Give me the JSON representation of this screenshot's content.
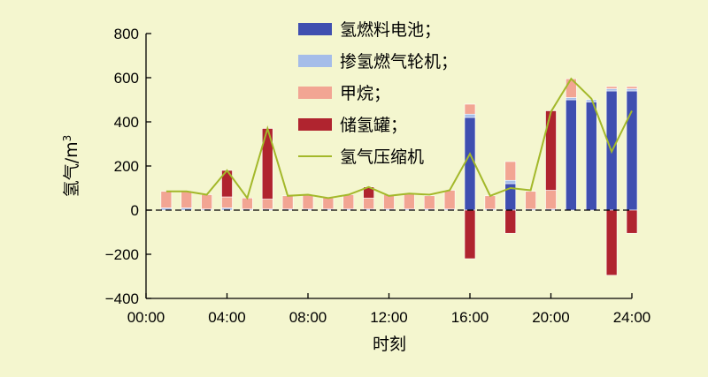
{
  "chart_data": {
    "type": "bar",
    "title": "",
    "xlabel": "时刻",
    "ylabel": "氢气/m",
    "ylabel_sup": "3",
    "ylim": [
      -400,
      800
    ],
    "yticks": [
      "800",
      "600",
      "400",
      "200",
      "0",
      "−200",
      "−400"
    ],
    "ytick_values": [
      800,
      600,
      400,
      200,
      0,
      -200,
      -400
    ],
    "xlim": [
      0,
      24
    ],
    "xticks": [
      "00:00",
      "04:00",
      "08:00",
      "12:00",
      "16:00",
      "20:00",
      "24:00"
    ],
    "xtick_values": [
      0,
      4,
      8,
      12,
      16,
      20,
      24
    ],
    "grid": false,
    "legend_position": "top-center",
    "x": [
      1,
      2,
      3,
      4,
      5,
      6,
      7,
      8,
      9,
      10,
      11,
      12,
      13,
      14,
      15,
      16,
      17,
      18,
      19,
      20,
      21,
      22,
      23,
      24
    ],
    "series": [
      {
        "name": "氢燃料电池；",
        "kind": "bar",
        "color": "#3f4fb0",
        "values": [
          0,
          0,
          0,
          0,
          0,
          0,
          0,
          0,
          0,
          0,
          0,
          0,
          0,
          0,
          0,
          420,
          0,
          120,
          0,
          0,
          500,
          490,
          540,
          540
        ]
      },
      {
        "name": "掺氢燃气轮机；",
        "kind": "bar",
        "color": "#a5bde9",
        "values": [
          10,
          10,
          5,
          10,
          5,
          5,
          5,
          5,
          5,
          5,
          5,
          5,
          5,
          5,
          5,
          15,
          5,
          15,
          5,
          5,
          10,
          10,
          10,
          10
        ]
      },
      {
        "name": "甲烷；",
        "kind": "bar",
        "color": "#f2a593",
        "values": [
          75,
          75,
          65,
          50,
          50,
          45,
          60,
          65,
          50,
          65,
          50,
          65,
          70,
          60,
          85,
          45,
          60,
          85,
          80,
          85,
          85,
          0,
          10,
          10
        ]
      },
      {
        "name": "储氢罐；",
        "kind": "bar",
        "color": "#b0242f",
        "values": [
          0,
          0,
          0,
          120,
          0,
          320,
          0,
          0,
          0,
          0,
          50,
          0,
          0,
          0,
          0,
          -220,
          0,
          -105,
          0,
          360,
          0,
          0,
          -295,
          -105
        ]
      },
      {
        "name": "氢气压缩机",
        "kind": "line",
        "color": "#a3b82a",
        "values": [
          85,
          85,
          70,
          180,
          55,
          370,
          65,
          70,
          55,
          70,
          105,
          65,
          75,
          70,
          90,
          255,
          65,
          100,
          90,
          445,
          595,
          505,
          265,
          450
        ]
      }
    ]
  }
}
